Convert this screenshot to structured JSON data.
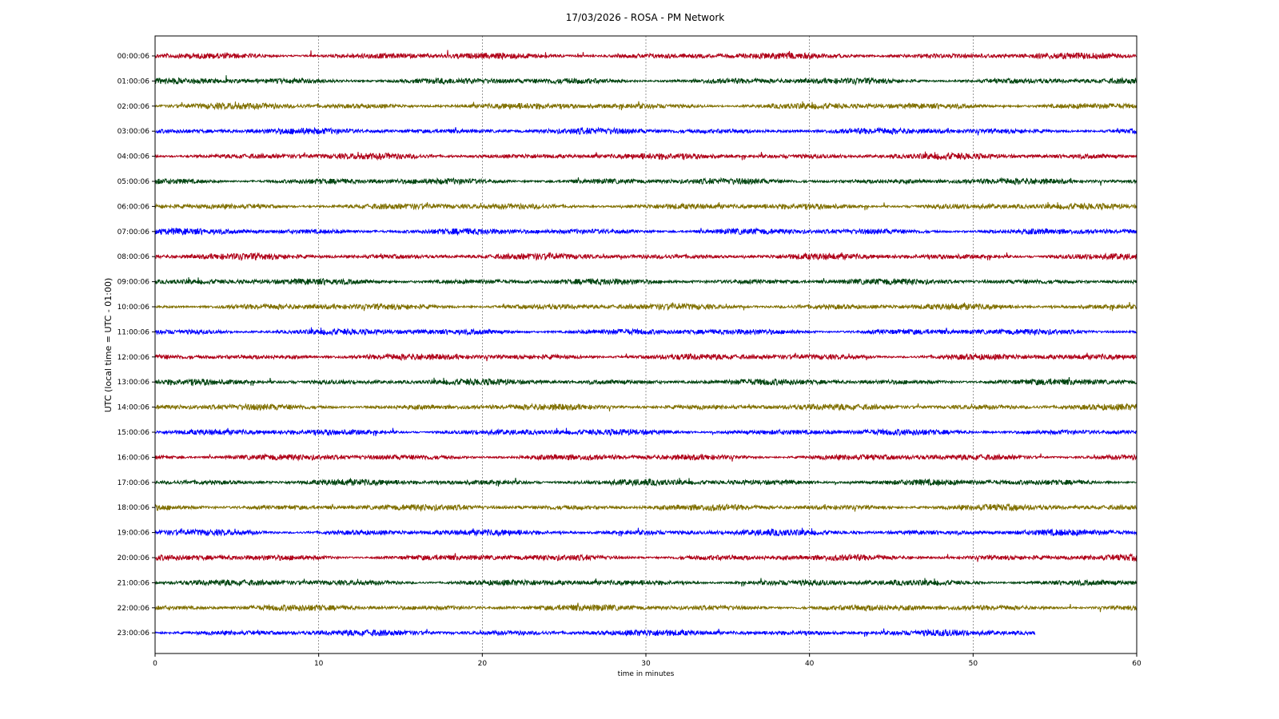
{
  "chart_data": {
    "type": "line",
    "title": "17/03/2026 - ROSA - PM Network",
    "xlabel": "time in minutes",
    "ylabel": "UTC (local time = UTC - 01:00)",
    "xlim": [
      0,
      60
    ],
    "x_ticks": [
      "0",
      "10",
      "20",
      "30",
      "40",
      "50",
      "60"
    ],
    "grid_x": true,
    "colors": [
      "#b00018",
      "#004410",
      "#807000",
      "#0000ff"
    ],
    "series": [
      {
        "label": "00:00:06",
        "end_minute": 60
      },
      {
        "label": "01:00:06",
        "end_minute": 60
      },
      {
        "label": "02:00:06",
        "end_minute": 60
      },
      {
        "label": "03:00:06",
        "end_minute": 60
      },
      {
        "label": "04:00:06",
        "end_minute": 60
      },
      {
        "label": "05:00:06",
        "end_minute": 60
      },
      {
        "label": "06:00:06",
        "end_minute": 60
      },
      {
        "label": "07:00:06",
        "end_minute": 60
      },
      {
        "label": "08:00:06",
        "end_minute": 60
      },
      {
        "label": "09:00:06",
        "end_minute": 60
      },
      {
        "label": "10:00:06",
        "end_minute": 60
      },
      {
        "label": "11:00:06",
        "end_minute": 60
      },
      {
        "label": "12:00:06",
        "end_minute": 60
      },
      {
        "label": "13:00:06",
        "end_minute": 60
      },
      {
        "label": "14:00:06",
        "end_minute": 60
      },
      {
        "label": "15:00:06",
        "end_minute": 60
      },
      {
        "label": "16:00:06",
        "end_minute": 60
      },
      {
        "label": "17:00:06",
        "end_minute": 60
      },
      {
        "label": "18:00:06",
        "end_minute": 60
      },
      {
        "label": "19:00:06",
        "end_minute": 60
      },
      {
        "label": "20:00:06",
        "end_minute": 60
      },
      {
        "label": "21:00:06",
        "end_minute": 60
      },
      {
        "label": "22:00:06",
        "end_minute": 60
      },
      {
        "label": "23:00:06",
        "end_minute": 53.8
      }
    ]
  }
}
